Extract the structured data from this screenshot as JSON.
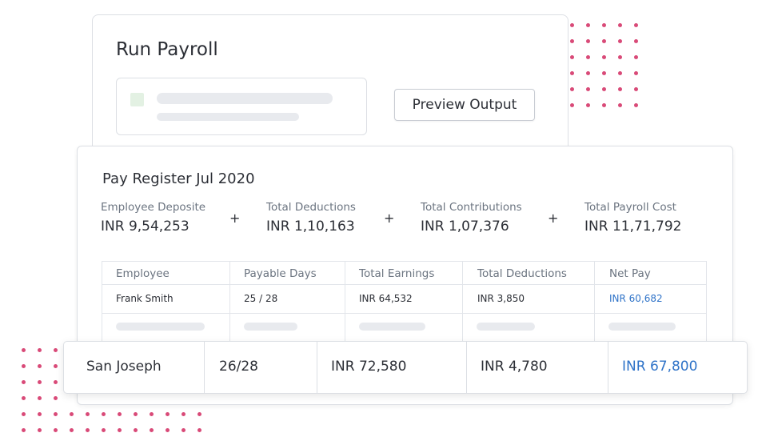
{
  "run_payroll": {
    "title": "Run Payroll",
    "preview_button": "Preview Output"
  },
  "pay_register": {
    "title": "Pay Register Jul 2020",
    "summary": [
      {
        "label": "Employee Deposite",
        "value": "INR 9,54,253"
      },
      {
        "label": "Total Deductions",
        "value": "INR 1,10,163"
      },
      {
        "label": "Total Contributions",
        "value": "INR 1,07,376"
      },
      {
        "label": "Total Payroll Cost",
        "value": "INR 11,71,792"
      }
    ],
    "operator": "+",
    "table": {
      "headers": [
        "Employee",
        "Payable Days",
        "Total Earnings",
        "Total Deductions",
        "Net Pay"
      ],
      "rows": [
        [
          "Frank Smith",
          "25 / 28",
          "INR 64,532",
          "INR 3,850",
          "INR 60,682"
        ]
      ]
    }
  },
  "highlighted_row": [
    "San Joseph",
    "26/28",
    "INR 72,580",
    "INR 4,780",
    "INR 67,800"
  ],
  "colors": {
    "accent_dots": "#d94a78",
    "link_blue": "#2f73c8",
    "border": "#dcdfe4"
  }
}
